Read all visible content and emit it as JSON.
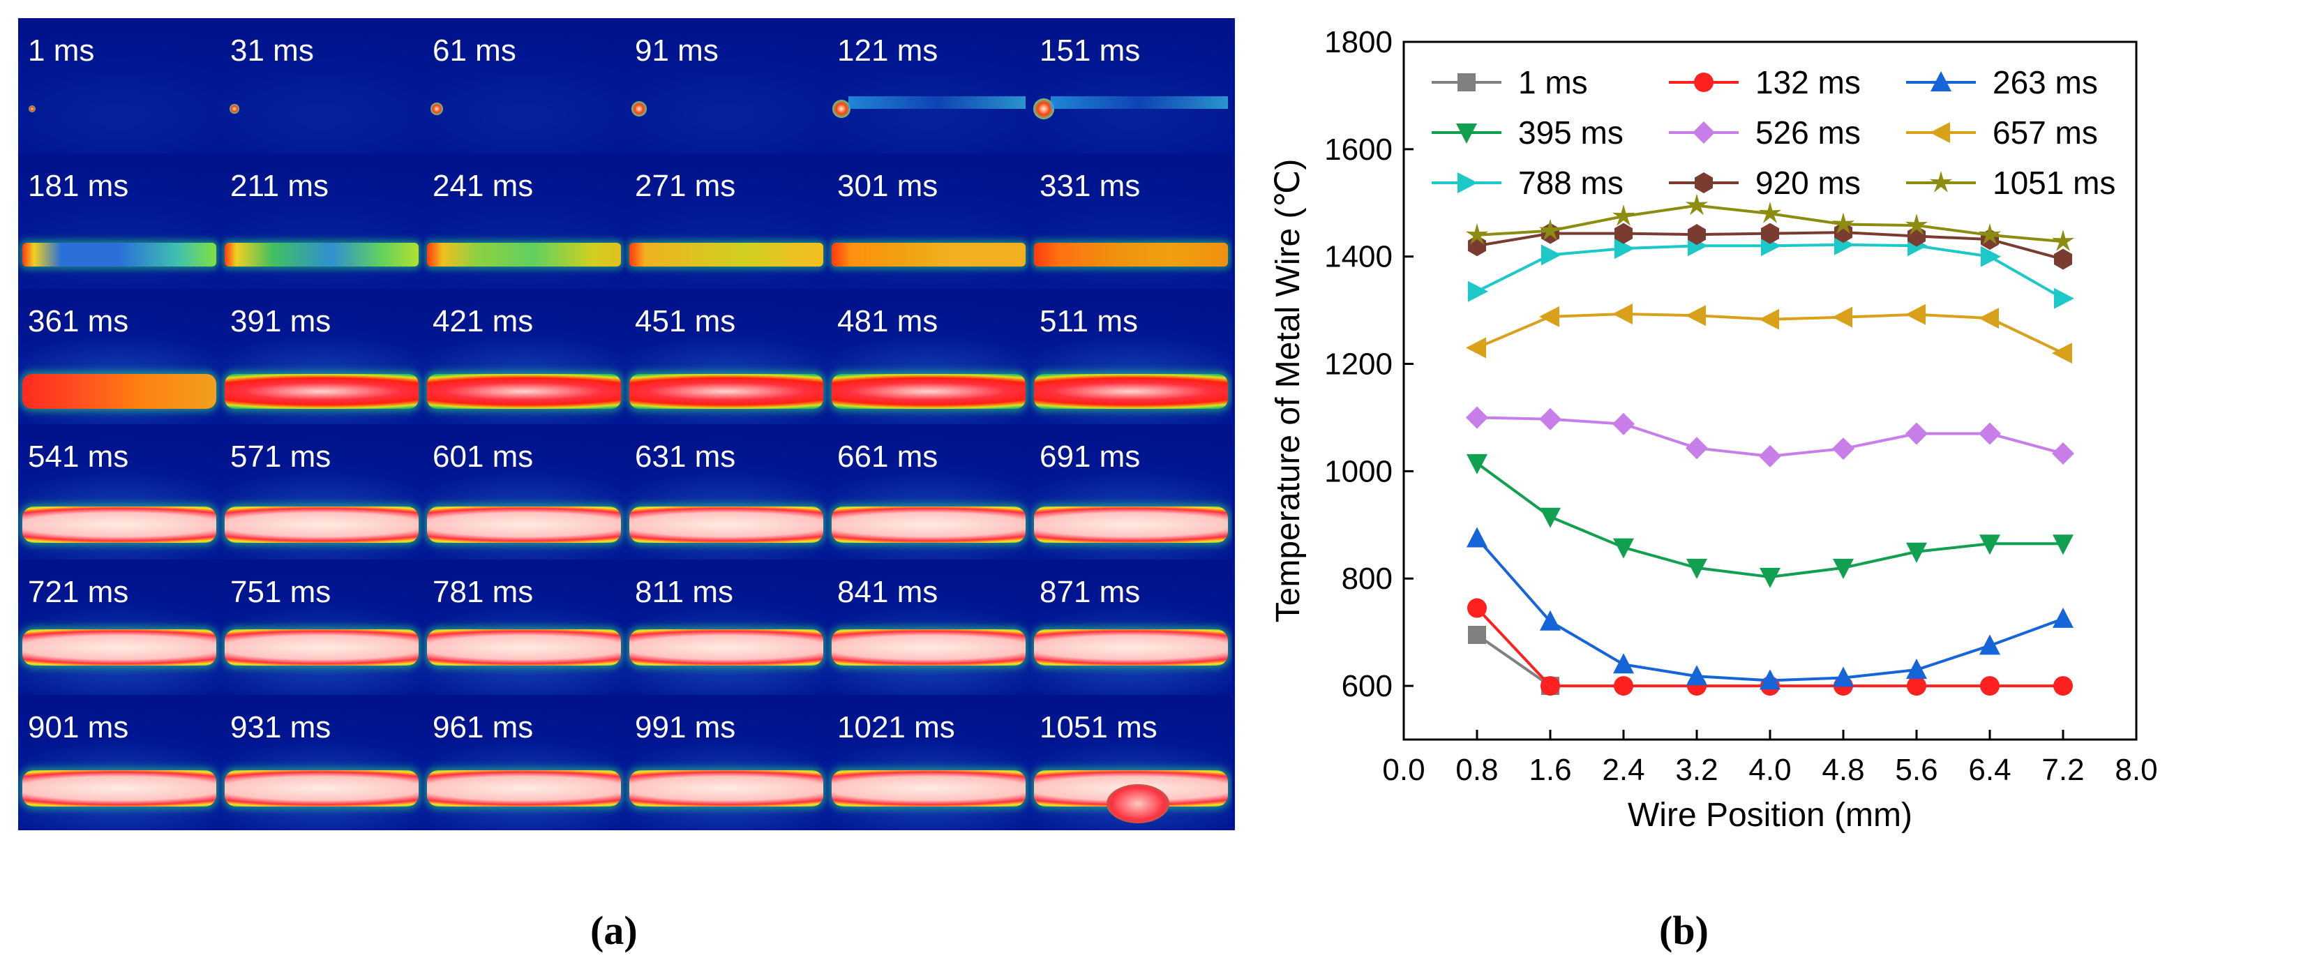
{
  "panel_a": {
    "frames": [
      [
        "1 ms",
        "31 ms",
        "61 ms",
        "91 ms",
        "121 ms",
        "151 ms"
      ],
      [
        "181 ms",
        "211 ms",
        "241 ms",
        "271 ms",
        "301 ms",
        "331 ms"
      ],
      [
        "361 ms",
        "391 ms",
        "421 ms",
        "451 ms",
        "481 ms",
        "511 ms"
      ],
      [
        "541 ms",
        "571 ms",
        "601 ms",
        "631 ms",
        "661 ms",
        "691 ms"
      ],
      [
        "721 ms",
        "751 ms",
        "781 ms",
        "811 ms",
        "841 ms",
        "871 ms"
      ],
      [
        "901 ms",
        "931 ms",
        "961 ms",
        "991 ms",
        "1021 ms",
        "1051 ms"
      ]
    ],
    "label": "(a)"
  },
  "panel_b": {
    "label": "(b)"
  },
  "chart_data": {
    "type": "line",
    "xlabel": "Wire Position (mm)",
    "ylabel": "Temperature of Metal Wire (℃)",
    "xlim": [
      0.0,
      8.0
    ],
    "ylim": [
      500,
      1800
    ],
    "xticks": [
      "0.0",
      "0.8",
      "1.6",
      "2.4",
      "3.2",
      "4.0",
      "4.8",
      "5.6",
      "6.4",
      "7.2",
      "8.0"
    ],
    "yticks": [
      "600",
      "800",
      "1000",
      "1200",
      "1400",
      "1600",
      "1800"
    ],
    "legend_position": "top",
    "series": [
      {
        "name": "1 ms",
        "color": "#808080",
        "marker": "square",
        "x": [
          0.8,
          1.6
        ],
        "values": [
          695,
          600
        ]
      },
      {
        "name": "132 ms",
        "color": "#ff2020",
        "marker": "circle",
        "x": [
          0.8,
          1.6,
          2.4,
          3.2,
          4.0,
          4.8,
          5.6,
          6.4,
          7.2
        ],
        "values": [
          745,
          600,
          600,
          600,
          600,
          600,
          600,
          600,
          600
        ]
      },
      {
        "name": "263 ms",
        "color": "#1565d8",
        "marker": "triangle-up",
        "x": [
          0.8,
          1.6,
          2.4,
          3.2,
          4.0,
          4.8,
          5.6,
          6.4,
          7.2
        ],
        "values": [
          875,
          720,
          640,
          618,
          610,
          615,
          630,
          675,
          725
        ]
      },
      {
        "name": "395 ms",
        "color": "#10a050",
        "marker": "triangle-down",
        "x": [
          0.8,
          1.6,
          2.4,
          3.2,
          4.0,
          4.8,
          5.6,
          6.4,
          7.2
        ],
        "values": [
          1015,
          915,
          858,
          820,
          803,
          820,
          850,
          865,
          865
        ]
      },
      {
        "name": "526 ms",
        "color": "#c77ee8",
        "marker": "diamond",
        "x": [
          0.8,
          1.6,
          2.4,
          3.2,
          4.0,
          4.8,
          5.6,
          6.4,
          7.2
        ],
        "values": [
          1100,
          1097,
          1088,
          1043,
          1028,
          1042,
          1070,
          1070,
          1033
        ]
      },
      {
        "name": "657 ms",
        "color": "#d9a01a",
        "marker": "triangle-left",
        "x": [
          0.8,
          1.6,
          2.4,
          3.2,
          4.0,
          4.8,
          5.6,
          6.4,
          7.2
        ],
        "values": [
          1230,
          1288,
          1293,
          1290,
          1283,
          1287,
          1292,
          1285,
          1220
        ]
      },
      {
        "name": "788 ms",
        "color": "#1dc8c8",
        "marker": "triangle-right",
        "x": [
          0.8,
          1.6,
          2.4,
          3.2,
          4.0,
          4.8,
          5.6,
          6.4,
          7.2
        ],
        "values": [
          1335,
          1403,
          1415,
          1420,
          1420,
          1422,
          1420,
          1400,
          1322
        ]
      },
      {
        "name": "920 ms",
        "color": "#7a3b30",
        "marker": "hexagon",
        "x": [
          0.8,
          1.6,
          2.4,
          3.2,
          4.0,
          4.8,
          5.6,
          6.4,
          7.2
        ],
        "values": [
          1420,
          1443,
          1443,
          1441,
          1443,
          1445,
          1438,
          1432,
          1395
        ]
      },
      {
        "name": "1051 ms",
        "color": "#8c8c10",
        "marker": "star",
        "x": [
          0.8,
          1.6,
          2.4,
          3.2,
          4.0,
          4.8,
          5.6,
          6.4,
          7.2
        ],
        "values": [
          1440,
          1448,
          1475,
          1495,
          1480,
          1460,
          1458,
          1440,
          1428
        ]
      }
    ]
  }
}
